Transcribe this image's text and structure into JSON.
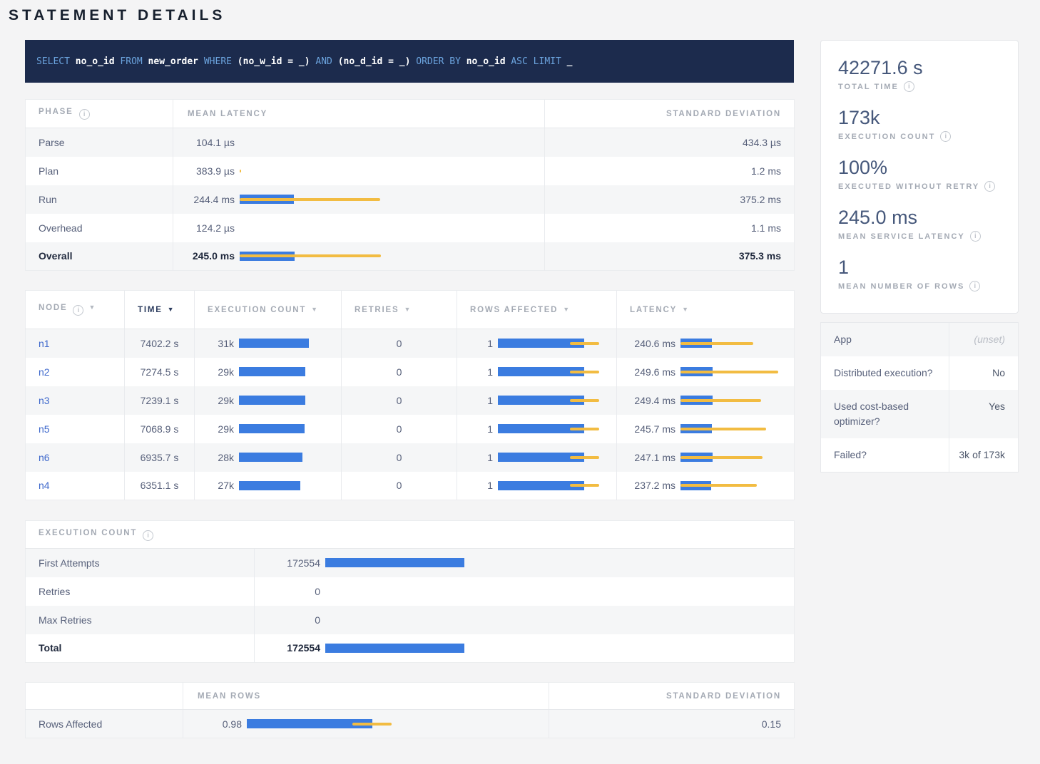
{
  "title": "STATEMENT DETAILS",
  "colors": {
    "bar_blue": "#3b7ce0",
    "stddev_yellow": "#f2bc42",
    "sql_background": "#1c2b4d",
    "sql_keyword": "#6ba3dd",
    "link_blue": "#3f69cc"
  },
  "sql": {
    "tokens": [
      {
        "text": "SELECT",
        "type": "kw"
      },
      {
        "text": "no_o_id",
        "type": "id"
      },
      {
        "text": "FROM",
        "type": "kw"
      },
      {
        "text": "new_order",
        "type": "id"
      },
      {
        "text": "WHERE",
        "type": "kw"
      },
      {
        "text": "(no_w_id = _)",
        "type": "id"
      },
      {
        "text": "AND",
        "type": "kw"
      },
      {
        "text": "(no_d_id = _)",
        "type": "id"
      },
      {
        "text": "ORDER BY",
        "type": "kw"
      },
      {
        "text": "no_o_id",
        "type": "id"
      },
      {
        "text": "ASC LIMIT",
        "type": "kw"
      },
      {
        "text": "_",
        "type": "id"
      }
    ]
  },
  "phase_table": {
    "col_phase": "PHASE",
    "col_mean": "MEAN LATENCY",
    "col_std": "STANDARD DEVIATION",
    "rows": [
      {
        "phase": "Parse",
        "mean": "104.1 µs",
        "std": "434.3 µs",
        "bar": 0,
        "dev": null,
        "bold": false
      },
      {
        "phase": "Plan",
        "mean": "383.9 µs",
        "std": "1.2 ms",
        "bar": 0,
        "dev": [
          0,
          0.012
        ],
        "bold": false
      },
      {
        "phase": "Run",
        "mean": "244.4 ms",
        "std": "375.2 ms",
        "bar": 0.38,
        "dev": [
          0,
          0.985
        ],
        "bold": false
      },
      {
        "phase": "Overhead",
        "mean": "124.2 µs",
        "std": "1.1 ms",
        "bar": 0,
        "dev": null,
        "bold": false
      },
      {
        "phase": "Overall",
        "mean": "245.0 ms",
        "std": "375.3 ms",
        "bar": 0.387,
        "dev": [
          0,
          0.99
        ],
        "bold": true
      }
    ]
  },
  "node_table": {
    "col_node": "NODE",
    "col_time": "TIME",
    "col_exec": "EXECUTION COUNT",
    "col_retries": "RETRIES",
    "col_rows": "ROWS AFFECTED",
    "col_latency": "LATENCY",
    "rows": [
      {
        "node": "n1",
        "time": "7402.2 s",
        "exec": "31k",
        "exec_bar": 0.7,
        "retries": "0",
        "rows": "1",
        "rows_bar": 0.755,
        "rows_dev": [
          0.63,
          0.885
        ],
        "latency": "240.6 ms",
        "lat_bar": 0.3,
        "lat_dev": [
          0,
          0.7
        ]
      },
      {
        "node": "n2",
        "time": "7274.5 s",
        "exec": "29k",
        "exec_bar": 0.665,
        "retries": "0",
        "rows": "1",
        "rows_bar": 0.755,
        "rows_dev": [
          0.63,
          0.885
        ],
        "latency": "249.6 ms",
        "lat_bar": 0.311,
        "lat_dev": [
          0,
          0.945
        ]
      },
      {
        "node": "n3",
        "time": "7239.1 s",
        "exec": "29k",
        "exec_bar": 0.662,
        "retries": "0",
        "rows": "1",
        "rows_bar": 0.755,
        "rows_dev": [
          0.63,
          0.885
        ],
        "latency": "249.4 ms",
        "lat_bar": 0.311,
        "lat_dev": [
          0,
          0.78
        ]
      },
      {
        "node": "n5",
        "time": "7068.9 s",
        "exec": "29k",
        "exec_bar": 0.658,
        "retries": "0",
        "rows": "1",
        "rows_bar": 0.755,
        "rows_dev": [
          0.63,
          0.885
        ],
        "latency": "245.7 ms",
        "lat_bar": 0.306,
        "lat_dev": [
          0,
          0.83
        ]
      },
      {
        "node": "n6",
        "time": "6935.7 s",
        "exec": "28k",
        "exec_bar": 0.635,
        "retries": "0",
        "rows": "1",
        "rows_bar": 0.755,
        "rows_dev": [
          0.63,
          0.885
        ],
        "latency": "247.1 ms",
        "lat_bar": 0.308,
        "lat_dev": [
          0,
          0.795
        ]
      },
      {
        "node": "n4",
        "time": "6351.1 s",
        "exec": "27k",
        "exec_bar": 0.612,
        "retries": "0",
        "rows": "1",
        "rows_bar": 0.755,
        "rows_dev": [
          0.63,
          0.885
        ],
        "latency": "237.2 ms",
        "lat_bar": 0.296,
        "lat_dev": [
          0,
          0.74
        ]
      }
    ]
  },
  "execution_table": {
    "title": "EXECUTION COUNT",
    "rows": [
      {
        "label": "First Attempts",
        "value": "172554",
        "bar": 0.298,
        "bold": false
      },
      {
        "label": "Retries",
        "value": "0",
        "bar": 0,
        "bold": false
      },
      {
        "label": "Max Retries",
        "value": "0",
        "bar": 0,
        "bold": false
      },
      {
        "label": "Total",
        "value": "172554",
        "bar": 0.298,
        "bold": true
      }
    ]
  },
  "rows_table": {
    "col_mean": "MEAN ROWS",
    "col_std": "STANDARD DEVIATION",
    "rows": [
      {
        "label": "Rows Affected",
        "mean": "0.98",
        "std": "0.15",
        "bar": 0.423,
        "dev": [
          0.357,
          0.49
        ]
      }
    ]
  },
  "summary_stats": [
    {
      "value": "42271.6 s",
      "label": "TOTAL TIME"
    },
    {
      "value": "173k",
      "label": "EXECUTION COUNT"
    },
    {
      "value": "100%",
      "label": "EXECUTED WITHOUT RETRY"
    },
    {
      "value": "245.0 ms",
      "label": "MEAN SERVICE LATENCY"
    },
    {
      "value": "1",
      "label": "MEAN NUMBER OF ROWS"
    }
  ],
  "details_table": [
    {
      "label": "App",
      "value": "(unset)",
      "muted": true
    },
    {
      "label": "Distributed execution?",
      "value": "No",
      "muted": false
    },
    {
      "label": "Used cost-based optimizer?",
      "value": "Yes",
      "muted": false
    },
    {
      "label": "Failed?",
      "value": "3k of 173k",
      "muted": false
    }
  ]
}
